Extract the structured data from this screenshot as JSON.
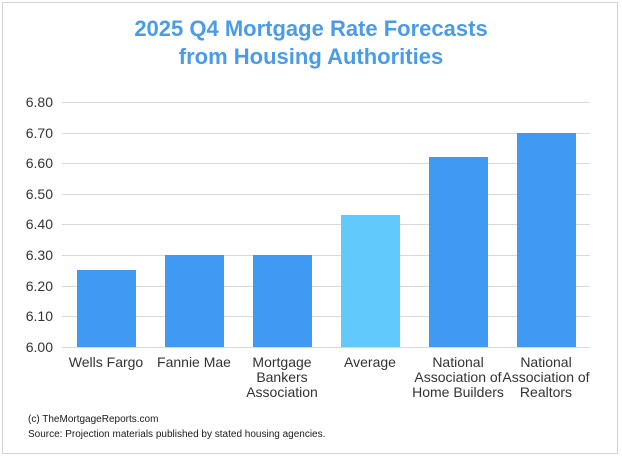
{
  "title": {
    "line1": "2025 Q4 Mortgage Rate Forecasts",
    "line2": "from Housing Authorities"
  },
  "footer": {
    "credit": "(c) TheMortgageReports.com",
    "source": "Source: Projection materials published by stated housing agencies."
  },
  "colors": {
    "title_blue": "#4A9BE8",
    "bar_blue": "#409AF4",
    "bar_highlight_blue": "#61C9FB",
    "gridline_gray": "#D9D9D9",
    "axis_text": "#333333",
    "footer_text": "#1A1A1A",
    "border_gray": "#D4D4D4"
  },
  "chart_data": {
    "type": "bar",
    "title": "2025 Q4 Mortgage Rate Forecasts from Housing Authorities",
    "categories": [
      "Wells Fargo",
      "Fannie Mae",
      "Mortgage Bankers Association",
      "Average",
      "National Association of Home Builders",
      "National Association of Realtors"
    ],
    "values": [
      6.25,
      6.3,
      6.3,
      6.43,
      6.62,
      6.7
    ],
    "highlight_index": 3,
    "highlight_category": "Average",
    "xlabel": "",
    "ylabel": "",
    "ylim": [
      6.0,
      6.8
    ],
    "ytick_step": 0.1,
    "ytick_labels": [
      "6.80",
      "6.70",
      "6.60",
      "6.50",
      "6.40",
      "6.30",
      "6.20",
      "6.10",
      "6.00"
    ],
    "grid": true,
    "legend": false
  }
}
